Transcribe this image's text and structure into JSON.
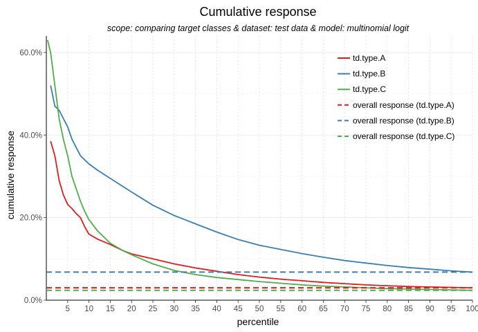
{
  "chart_data": {
    "type": "line",
    "title": "Cumulative response",
    "subtitle": "scope: comparing target classes & dataset: test data  &  model: multinomial logit",
    "xlabel": "percentile",
    "ylabel": "cumulative response",
    "xlim": [
      0,
      100
    ],
    "ylim": [
      0,
      0.64
    ],
    "x_ticks": [
      5,
      10,
      15,
      20,
      25,
      30,
      35,
      40,
      45,
      50,
      55,
      60,
      65,
      70,
      75,
      80,
      85,
      90,
      95,
      100
    ],
    "y_ticks": [
      0,
      0.2,
      0.4,
      0.6
    ],
    "y_tick_labels": [
      "0.0%",
      "20.0%",
      "40.0%",
      "60.0%"
    ],
    "grid": true,
    "legend_position": "top-right",
    "series": [
      {
        "name": "td.type.A",
        "color": "#E41A1C",
        "dash": false,
        "x": [
          1,
          2,
          3,
          4,
          5,
          6,
          7,
          8,
          9,
          10,
          12,
          15,
          18,
          20,
          25,
          30,
          35,
          40,
          45,
          50,
          55,
          60,
          65,
          70,
          75,
          80,
          85,
          90,
          95,
          100
        ],
        "y": [
          0.385,
          0.35,
          0.29,
          0.255,
          0.232,
          0.222,
          0.21,
          0.2,
          0.178,
          0.16,
          0.148,
          0.135,
          0.12,
          0.112,
          0.1,
          0.088,
          0.078,
          0.07,
          0.062,
          0.056,
          0.051,
          0.047,
          0.043,
          0.04,
          0.037,
          0.035,
          0.033,
          0.032,
          0.031,
          0.03
        ]
      },
      {
        "name": "td.type.B",
        "color": "#377EB8",
        "dash": false,
        "x": [
          1,
          2,
          3,
          4,
          5,
          6,
          7,
          8,
          9,
          10,
          12,
          15,
          20,
          25,
          30,
          35,
          40,
          45,
          50,
          55,
          60,
          65,
          70,
          75,
          80,
          85,
          90,
          95,
          100
        ],
        "y": [
          0.52,
          0.47,
          0.46,
          0.44,
          0.42,
          0.39,
          0.37,
          0.35,
          0.34,
          0.33,
          0.315,
          0.295,
          0.262,
          0.23,
          0.205,
          0.185,
          0.165,
          0.147,
          0.133,
          0.123,
          0.113,
          0.104,
          0.096,
          0.09,
          0.084,
          0.079,
          0.075,
          0.071,
          0.068
        ]
      },
      {
        "name": "td.type.C",
        "color": "#4DAF4A",
        "dash": false,
        "x": [
          0.3,
          1,
          2,
          3,
          4,
          5,
          6,
          7,
          8,
          9,
          10,
          12,
          15,
          18,
          20,
          25,
          30,
          35,
          40,
          45,
          50,
          55,
          60,
          65,
          70,
          75,
          80,
          85,
          90,
          95,
          100
        ],
        "y": [
          0.63,
          0.6,
          0.52,
          0.44,
          0.39,
          0.35,
          0.3,
          0.27,
          0.24,
          0.215,
          0.195,
          0.168,
          0.138,
          0.12,
          0.11,
          0.088,
          0.072,
          0.062,
          0.055,
          0.05,
          0.045,
          0.041,
          0.037,
          0.034,
          0.032,
          0.03,
          0.028,
          0.027,
          0.026,
          0.025,
          0.024
        ]
      },
      {
        "name": "overall response (td.type.A)",
        "color": "#E41A1C",
        "dash": true,
        "x": [
          0,
          100
        ],
        "y": [
          0.03,
          0.03
        ]
      },
      {
        "name": "overall response (td.type.B)",
        "color": "#377EB8",
        "dash": true,
        "x": [
          0,
          100
        ],
        "y": [
          0.068,
          0.068
        ]
      },
      {
        "name": "overall response (td.type.C)",
        "color": "#4DAF4A",
        "dash": true,
        "x": [
          0,
          100
        ],
        "y": [
          0.024,
          0.024
        ]
      }
    ]
  }
}
